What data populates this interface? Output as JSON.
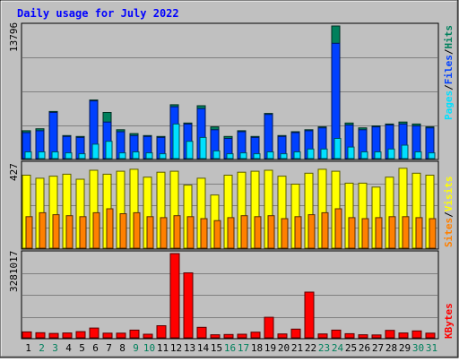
{
  "title": "Daily usage for July 2022",
  "colors": {
    "background": "#c0c0c0",
    "plot_bg": "#c0c0c0",
    "title": "#0000ff",
    "hits": "#00805c",
    "files": "#0040ff",
    "pages": "#00e0ff",
    "visits": "#ffff00",
    "sites": "#ff8000",
    "kbytes": "#ff0000",
    "weekday_label": "#000000",
    "weekend_label": "#00805c"
  },
  "chart_data": [
    {
      "type": "bar",
      "panel": "top",
      "ymax_label": "13796",
      "legend": {
        "pages": "Pages",
        "sep1": "/",
        "files": "Files",
        "sep2": "/",
        "hits": "Hits"
      },
      "categories": [
        "1",
        "2",
        "3",
        "4",
        "5",
        "6",
        "7",
        "8",
        "9",
        "10",
        "11",
        "12",
        "13",
        "14",
        "15",
        "16",
        "17",
        "18",
        "19",
        "20",
        "21",
        "22",
        "23",
        "24",
        "25",
        "26",
        "27",
        "28",
        "29",
        "30",
        "31"
      ],
      "weekend_days": [
        2,
        3,
        9,
        10,
        16,
        17,
        23,
        24,
        30,
        31
      ],
      "ylim": [
        0,
        13796
      ],
      "series": [
        {
          "name": "Hits",
          "values": [
            2900,
            3100,
            4900,
            2400,
            2300,
            6100,
            4800,
            3000,
            2600,
            2400,
            2300,
            5600,
            3700,
            5500,
            3300,
            2300,
            2900,
            2300,
            4700,
            2400,
            2800,
            3000,
            3300,
            13796,
            3700,
            3200,
            3400,
            3600,
            3800,
            3600,
            3300
          ]
        },
        {
          "name": "Files",
          "values": [
            2700,
            2900,
            4800,
            2300,
            2200,
            6000,
            3800,
            2800,
            2400,
            2300,
            2200,
            5400,
            3600,
            5200,
            3000,
            2100,
            2800,
            2200,
            4600,
            2300,
            2700,
            2900,
            3200,
            12000,
            3500,
            3000,
            3300,
            3500,
            3600,
            3400,
            3200
          ]
        },
        {
          "name": "Pages",
          "values": [
            700,
            700,
            700,
            600,
            500,
            1500,
            1800,
            600,
            700,
            600,
            500,
            3600,
            1800,
            2200,
            800,
            500,
            600,
            500,
            700,
            500,
            700,
            1000,
            1000,
            2100,
            1200,
            700,
            700,
            1000,
            1400,
            700,
            600
          ]
        }
      ]
    },
    {
      "type": "bar",
      "panel": "middle",
      "ymax_label": "427",
      "legend": {
        "sites": "Sites",
        "sep": "/",
        "visits": "Visits"
      },
      "ylim": [
        0,
        427
      ],
      "series": [
        {
          "name": "Visits",
          "values": [
            370,
            355,
            365,
            375,
            350,
            395,
            375,
            390,
            400,
            360,
            385,
            390,
            320,
            355,
            270,
            370,
            385,
            390,
            395,
            365,
            325,
            380,
            400,
            390,
            330,
            330,
            310,
            360,
            405,
            380,
            370
          ]
        },
        {
          "name": "Sites",
          "values": [
            160,
            180,
            170,
            165,
            160,
            180,
            200,
            175,
            180,
            160,
            155,
            165,
            160,
            150,
            140,
            155,
            165,
            160,
            165,
            150,
            160,
            170,
            180,
            200,
            155,
            150,
            155,
            160,
            160,
            155,
            150
          ]
        }
      ]
    },
    {
      "type": "bar",
      "panel": "bottom",
      "ymax_label": "3281017",
      "legend": {
        "kbytes": "KBytes"
      },
      "ylim": [
        0,
        3281017
      ],
      "series": [
        {
          "name": "KBytes",
          "values": [
            230000,
            200000,
            170000,
            190000,
            240000,
            380000,
            180000,
            180000,
            300000,
            140000,
            470000,
            3281017,
            2530000,
            410000,
            120000,
            130000,
            140000,
            220000,
            800000,
            150000,
            340000,
            1780000,
            150000,
            300000,
            160000,
            120000,
            110000,
            290000,
            190000,
            270000,
            180000
          ]
        }
      ]
    }
  ]
}
